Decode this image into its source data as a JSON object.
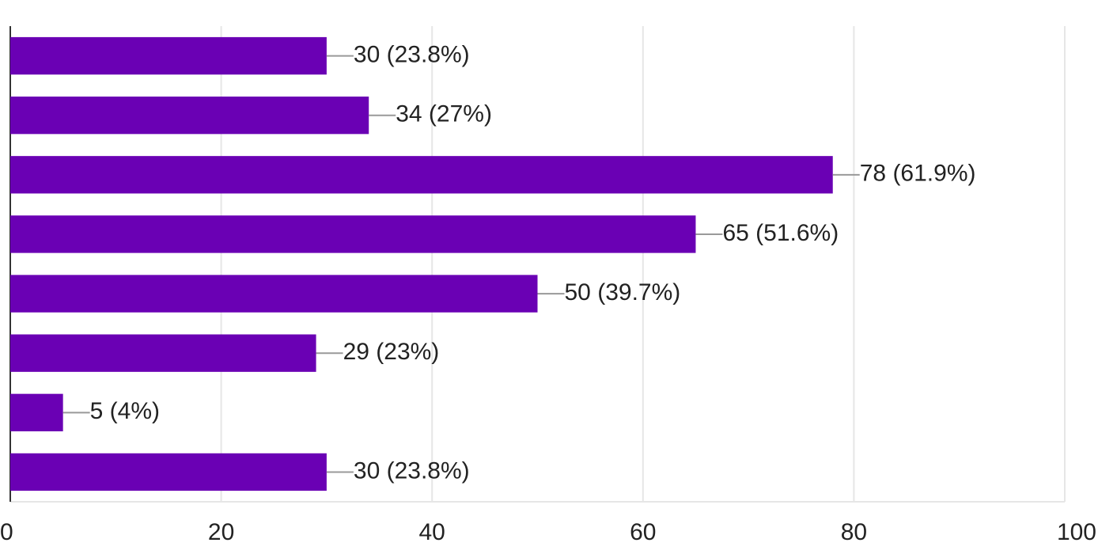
{
  "chart_data": {
    "type": "bar",
    "orientation": "horizontal",
    "categories": [
      null,
      null,
      null,
      null,
      null,
      null,
      null,
      null
    ],
    "values": [
      30,
      34,
      78,
      65,
      50,
      29,
      5,
      30
    ],
    "value_labels": [
      "30 (23.8%)",
      "34 (27%)",
      "78 (61.9%)",
      "65 (51.6%)",
      "50 (39.7%)",
      "29 (23%)",
      "5 (4%)",
      "30 (23.8%)"
    ],
    "color": "#6a00b4",
    "xlim": [
      0,
      100
    ],
    "xticks": [
      0,
      20,
      40,
      60,
      80,
      100
    ],
    "grid": true
  }
}
